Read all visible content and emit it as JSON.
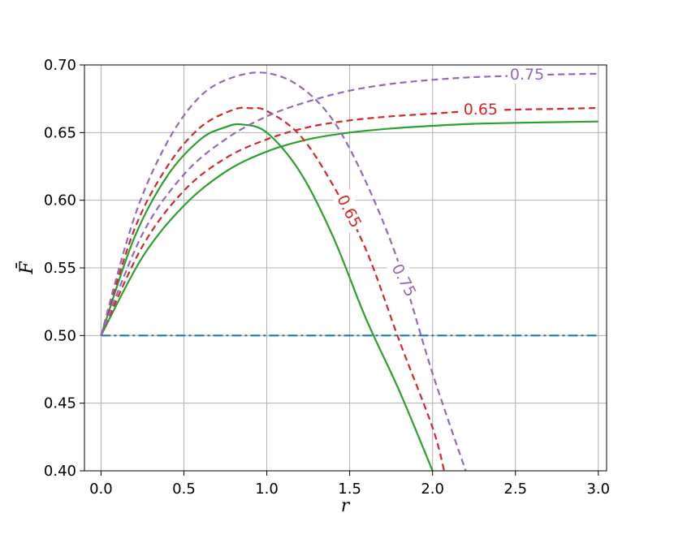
{
  "chart_data": {
    "type": "line",
    "title": "",
    "xlabel": "r",
    "ylabel": "F̄",
    "xlim": [
      -0.1,
      3.05
    ],
    "ylim": [
      0.4,
      0.7
    ],
    "xticks": [
      0.0,
      0.5,
      1.0,
      1.5,
      2.0,
      2.5,
      3.0
    ],
    "xtick_labels": [
      "0.0",
      "0.5",
      "1.0",
      "1.5",
      "2.0",
      "2.5",
      "3.0"
    ],
    "yticks": [
      0.4,
      0.45,
      0.5,
      0.55,
      0.6,
      0.65,
      0.7
    ],
    "ytick_labels": [
      "0.40",
      "0.45",
      "0.50",
      "0.55",
      "0.60",
      "0.65",
      "0.70"
    ],
    "grid": true,
    "colors": {
      "green": "#2ca02c",
      "red": "#d62728",
      "purple": "#9467bd",
      "blue": "#1f77b4",
      "grid": "#b0b0b0"
    },
    "series": [
      {
        "style": "dashdot",
        "color": "#1f77b4",
        "x": [
          0.0,
          0.5,
          1.0,
          1.5,
          2.0,
          2.5,
          3.0
        ],
        "y": [
          0.5,
          0.5,
          0.5,
          0.5,
          0.5,
          0.5,
          0.5
        ]
      },
      {
        "style": "solid",
        "color": "#2ca02c",
        "x": [
          0.0,
          0.25,
          0.5,
          0.75,
          1.0,
          1.25,
          1.5,
          1.75,
          2.0,
          2.25,
          2.5,
          2.75,
          3.0
        ],
        "y": [
          0.5,
          0.558,
          0.596,
          0.621,
          0.636,
          0.645,
          0.65,
          0.653,
          0.655,
          0.6565,
          0.6572,
          0.6577,
          0.6582
        ]
      },
      {
        "style": "solid",
        "color": "#2ca02c",
        "x": [
          0.0,
          0.2,
          0.4,
          0.6,
          0.75,
          0.85,
          1.0,
          1.2,
          1.4,
          1.6,
          1.8,
          2.0
        ],
        "y": [
          0.5,
          0.572,
          0.618,
          0.645,
          0.654,
          0.656,
          0.65,
          0.621,
          0.573,
          0.512,
          0.459,
          0.4
        ]
      },
      {
        "style": "dashed",
        "color": "#d62728",
        "label": "0.65",
        "x": [
          0.0,
          0.25,
          0.5,
          0.75,
          1.0,
          1.25,
          1.5,
          1.75,
          2.0,
          2.25,
          2.5,
          2.75,
          3.0
        ],
        "y": [
          0.5,
          0.566,
          0.607,
          0.631,
          0.645,
          0.654,
          0.659,
          0.662,
          0.664,
          0.666,
          0.667,
          0.6675,
          0.6682
        ]
      },
      {
        "style": "dashed",
        "color": "#d62728",
        "label": "0.65",
        "x": [
          0.0,
          0.2,
          0.4,
          0.6,
          0.8,
          0.9,
          1.0,
          1.2,
          1.4,
          1.6,
          1.8,
          2.0,
          2.07
        ],
        "y": [
          0.5,
          0.578,
          0.625,
          0.654,
          0.667,
          0.668,
          0.666,
          0.648,
          0.611,
          0.563,
          0.496,
          0.432,
          0.4
        ]
      },
      {
        "style": "dashed",
        "color": "#9467bd",
        "label": "0.75",
        "x": [
          0.0,
          0.25,
          0.5,
          0.75,
          1.0,
          1.25,
          1.5,
          1.75,
          2.0,
          2.25,
          2.5,
          2.75,
          3.0
        ],
        "y": [
          0.5,
          0.575,
          0.619,
          0.645,
          0.662,
          0.673,
          0.681,
          0.686,
          0.689,
          0.691,
          0.692,
          0.693,
          0.6935
        ]
      },
      {
        "style": "dashed",
        "color": "#9467bd",
        "label": "0.75",
        "x": [
          0.0,
          0.2,
          0.4,
          0.6,
          0.8,
          1.0,
          1.2,
          1.4,
          1.6,
          1.8,
          2.0,
          2.2
        ],
        "y": [
          0.5,
          0.587,
          0.643,
          0.677,
          0.691,
          0.694,
          0.684,
          0.659,
          0.613,
          0.552,
          0.472,
          0.4
        ]
      }
    ],
    "curve_labels": [
      {
        "text": "0.75",
        "color": "#9467bd",
        "x": 2.57,
        "y": 0.6935,
        "angle": 0
      },
      {
        "text": "0.65",
        "color": "#d62728",
        "x": 2.29,
        "y": 0.6675,
        "angle": 0
      },
      {
        "text": "0.65",
        "color": "#d62728",
        "x": 1.5,
        "y": 0.592,
        "angle": 63
      },
      {
        "text": "0.75",
        "color": "#9467bd",
        "x": 1.83,
        "y": 0.541,
        "angle": 63
      }
    ]
  }
}
